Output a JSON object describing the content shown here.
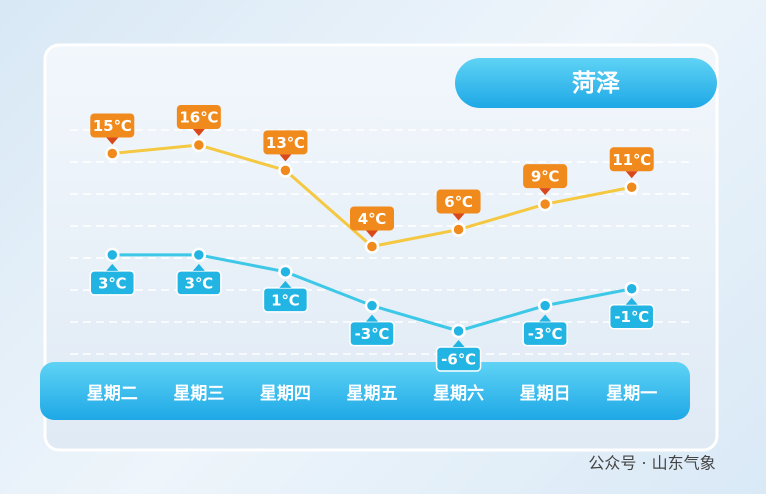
{
  "chart_data": {
    "type": "line",
    "title": "菏泽",
    "categories": [
      "星期二",
      "星期三",
      "星期四",
      "星期五",
      "星期六",
      "星期日",
      "星期一"
    ],
    "series": [
      {
        "color": "#f5c842",
        "label_color": "#f08a1c",
        "values": [
          15,
          16,
          13,
          4,
          6,
          9,
          11
        ],
        "value_labels": [
          "15℃",
          "16℃",
          "13℃",
          "4℃",
          "6℃",
          "9℃",
          "11℃"
        ]
      },
      {
        "color": "#3cc8e6",
        "label_color": "#22b4e2",
        "values": [
          3,
          3,
          1,
          -3,
          -6,
          -3,
          -1
        ],
        "value_labels": [
          "3℃",
          "3℃",
          "1℃",
          "-3℃",
          "-6℃",
          "-3℃",
          "-1℃"
        ]
      }
    ],
    "grid": true
  },
  "watermark": "公众号 · 山东气象"
}
